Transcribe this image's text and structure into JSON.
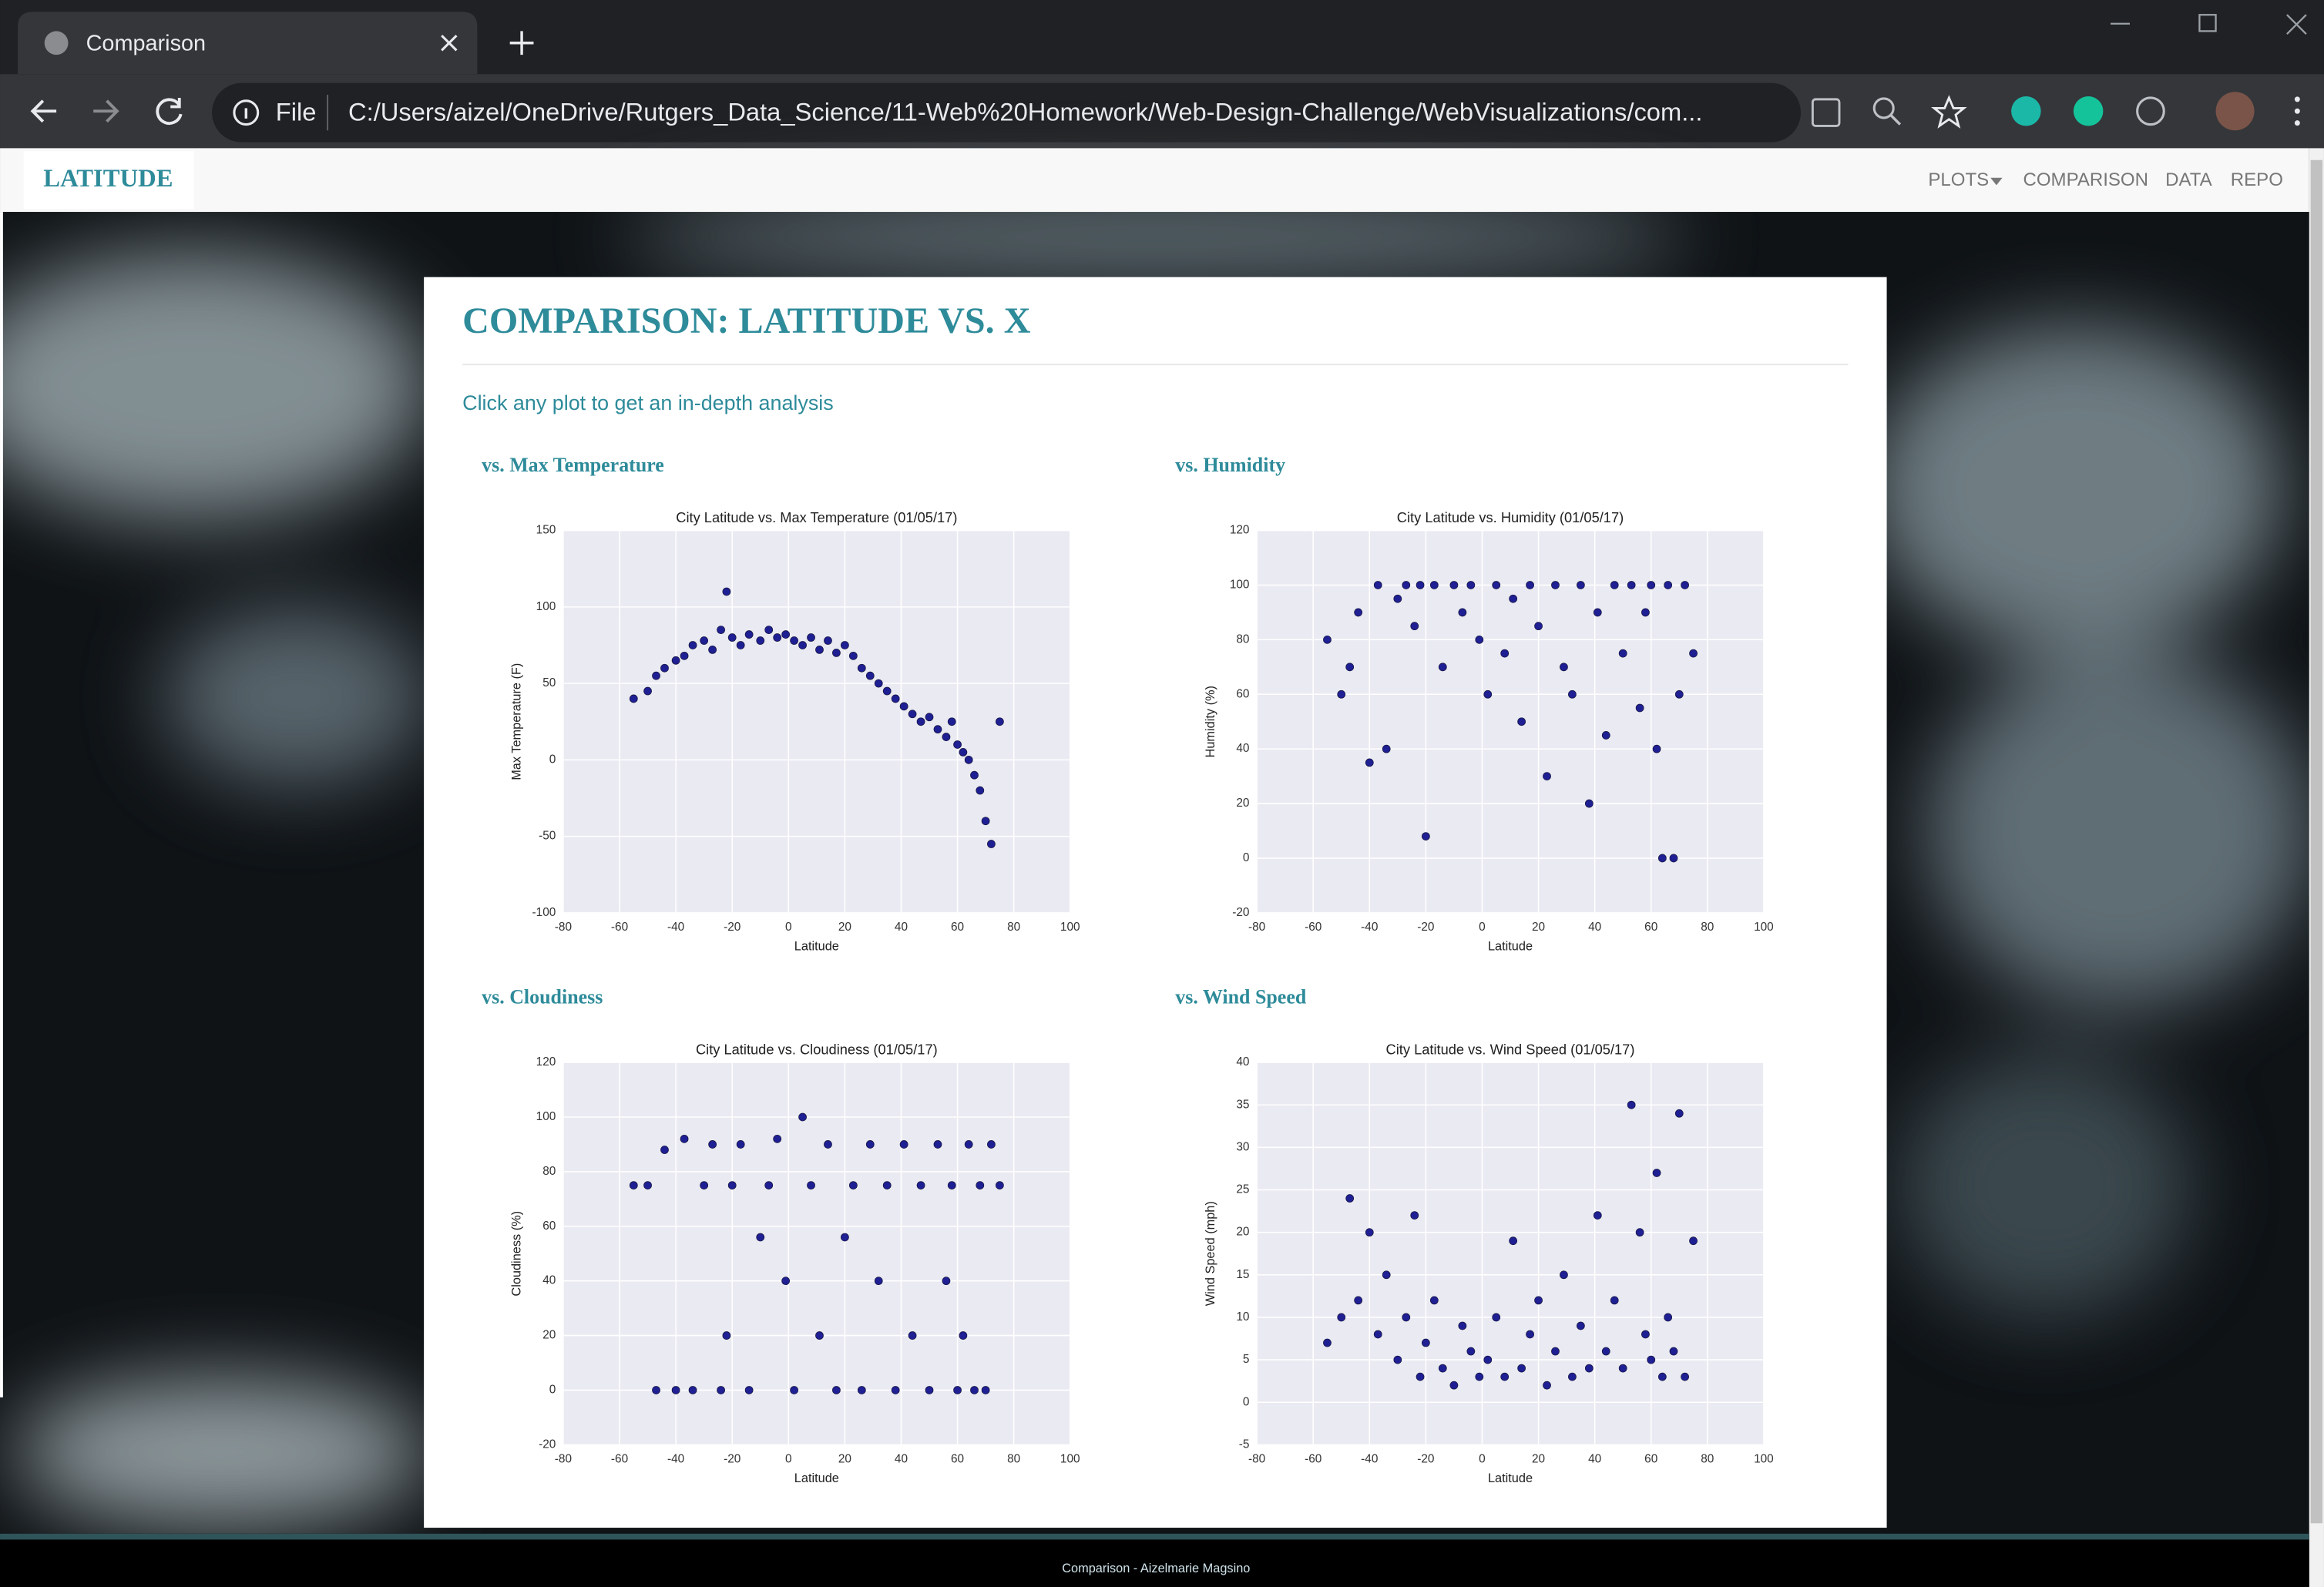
{
  "browser": {
    "tab_title": "Comparison",
    "file_label": "File",
    "url": "C:/Users/aizel/OneDrive/Rutgers_Data_Science/11-Web%20Homework/Web-Design-Challenge/WebVisualizations/com..."
  },
  "navbar": {
    "brand": "LATITUDE",
    "links": [
      "PLOTS",
      "COMPARISON",
      "DATA",
      "REPO"
    ]
  },
  "page": {
    "title": "COMPARISON: LATITUDE VS. X",
    "subtitle": "Click any plot to get an in-depth analysis",
    "panels": [
      "vs. Max Temperature",
      "vs. Humidity",
      "vs. Cloudiness",
      "vs. Wind Speed"
    ]
  },
  "chart_data": [
    {
      "type": "scatter",
      "title": "City Latitude vs. Max Temperature (01/05/17)",
      "x_label": "Latitude",
      "y_label": "Max Temperature (F)",
      "color": "#0a0a8a",
      "grid": true,
      "xlim": [
        -80,
        100
      ],
      "xticks": [
        -80,
        -60,
        -40,
        -20,
        0,
        20,
        40,
        60,
        80,
        100
      ],
      "ylim": [
        -100,
        150
      ],
      "yticks": [
        -100,
        -50,
        0,
        50,
        100,
        150
      ],
      "x": [
        -55,
        -50,
        -47,
        -44,
        -40,
        -37,
        -34,
        -30,
        -27,
        -24,
        -22,
        -20,
        -17,
        -14,
        -10,
        -7,
        -4,
        -1,
        2,
        5,
        8,
        11,
        14,
        17,
        20,
        23,
        26,
        29,
        32,
        35,
        38,
        41,
        44,
        47,
        50,
        53,
        56,
        58,
        60,
        62,
        64,
        66,
        68,
        70,
        72,
        75
      ],
      "values": [
        40,
        45,
        55,
        60,
        65,
        68,
        75,
        78,
        72,
        85,
        110,
        80,
        75,
        82,
        78,
        85,
        80,
        82,
        78,
        75,
        80,
        72,
        78,
        70,
        75,
        68,
        60,
        55,
        50,
        45,
        40,
        35,
        30,
        25,
        28,
        20,
        15,
        25,
        10,
        5,
        0,
        -10,
        -20,
        -40,
        -55,
        25
      ]
    },
    {
      "type": "scatter",
      "title": "City Latitude vs. Humidity (01/05/17)",
      "x_label": "Latitude",
      "y_label": "Humidity (%)",
      "color": "#0a0a8a",
      "grid": true,
      "xlim": [
        -80,
        100
      ],
      "xticks": [
        -80,
        -60,
        -40,
        -20,
        0,
        20,
        40,
        60,
        80,
        100
      ],
      "ylim": [
        -20,
        120
      ],
      "yticks": [
        -20,
        0,
        20,
        40,
        60,
        80,
        100,
        120
      ],
      "x": [
        -55,
        -50,
        -47,
        -44,
        -40,
        -37,
        -34,
        -30,
        -27,
        -24,
        -22,
        -20,
        -17,
        -14,
        -10,
        -7,
        -4,
        -1,
        2,
        5,
        8,
        11,
        14,
        17,
        20,
        23,
        26,
        29,
        32,
        35,
        38,
        41,
        44,
        47,
        50,
        53,
        56,
        58,
        60,
        62,
        64,
        66,
        68,
        70,
        72,
        75
      ],
      "values": [
        80,
        60,
        70,
        90,
        35,
        100,
        40,
        95,
        100,
        85,
        100,
        8,
        100,
        70,
        100,
        90,
        100,
        80,
        60,
        100,
        75,
        95,
        50,
        100,
        85,
        30,
        100,
        70,
        60,
        100,
        20,
        90,
        45,
        100,
        75,
        100,
        55,
        90,
        100,
        40,
        0,
        100,
        0,
        60,
        100,
        75
      ]
    },
    {
      "type": "scatter",
      "title": "City Latitude vs. Cloudiness (01/05/17)",
      "x_label": "Latitude",
      "y_label": "Cloudiness (%)",
      "color": "#0a0a8a",
      "grid": true,
      "xlim": [
        -80,
        100
      ],
      "xticks": [
        -80,
        -60,
        -40,
        -20,
        0,
        20,
        40,
        60,
        80,
        100
      ],
      "ylim": [
        -20,
        120
      ],
      "yticks": [
        -20,
        0,
        20,
        40,
        60,
        80,
        100,
        120
      ],
      "x": [
        -55,
        -50,
        -47,
        -44,
        -40,
        -37,
        -34,
        -30,
        -27,
        -24,
        -22,
        -20,
        -17,
        -14,
        -10,
        -7,
        -4,
        -1,
        2,
        5,
        8,
        11,
        14,
        17,
        20,
        23,
        26,
        29,
        32,
        35,
        38,
        41,
        44,
        47,
        50,
        53,
        56,
        58,
        60,
        62,
        64,
        66,
        68,
        70,
        72,
        75
      ],
      "values": [
        75,
        75,
        0,
        88,
        0,
        92,
        0,
        75,
        90,
        0,
        20,
        75,
        90,
        0,
        56,
        75,
        92,
        40,
        0,
        100,
        75,
        20,
        90,
        0,
        56,
        75,
        0,
        90,
        40,
        75,
        0,
        90,
        20,
        75,
        0,
        90,
        40,
        75,
        0,
        20,
        90,
        0,
        75,
        0,
        90,
        75
      ]
    },
    {
      "type": "scatter",
      "title": "City Latitude vs. Wind Speed (01/05/17)",
      "x_label": "Latitude",
      "y_label": "Wind Speed (mph)",
      "color": "#0a0a8a",
      "grid": true,
      "xlim": [
        -80,
        100
      ],
      "xticks": [
        -80,
        -60,
        -40,
        -20,
        0,
        20,
        40,
        60,
        80,
        100
      ],
      "ylim": [
        -5,
        40
      ],
      "yticks": [
        -5,
        0,
        5,
        10,
        15,
        20,
        25,
        30,
        35,
        40
      ],
      "x": [
        -55,
        -50,
        -47,
        -44,
        -40,
        -37,
        -34,
        -30,
        -27,
        -24,
        -22,
        -20,
        -17,
        -14,
        -10,
        -7,
        -4,
        -1,
        2,
        5,
        8,
        11,
        14,
        17,
        20,
        23,
        26,
        29,
        32,
        35,
        38,
        41,
        44,
        47,
        50,
        53,
        56,
        58,
        60,
        62,
        64,
        66,
        68,
        70,
        72,
        75
      ],
      "values": [
        7,
        10,
        24,
        12,
        20,
        8,
        15,
        5,
        10,
        22,
        3,
        7,
        12,
        4,
        2,
        9,
        6,
        3,
        5,
        10,
        3,
        19,
        4,
        8,
        12,
        2,
        6,
        15,
        3,
        9,
        4,
        22,
        6,
        12,
        4,
        35,
        20,
        8,
        5,
        27,
        3,
        10,
        6,
        34,
        3,
        19
      ]
    }
  ],
  "footer": "Comparison - Aizelmarie Magsino"
}
